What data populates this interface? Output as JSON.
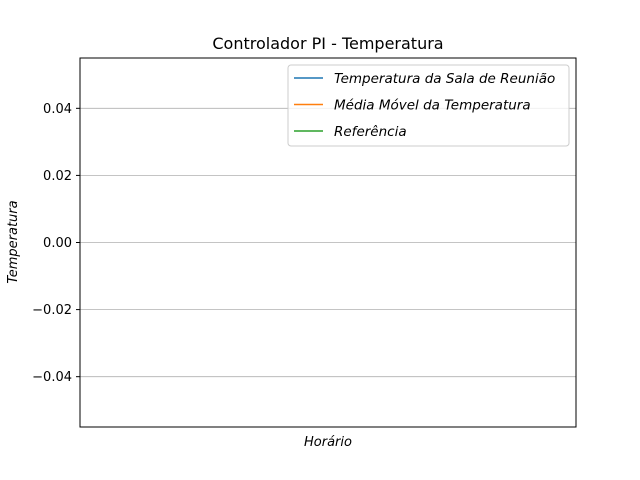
{
  "chart_data": {
    "type": "line",
    "title": "Controlador PI - Temperatura",
    "xlabel": "Horário",
    "ylabel": "Temperatura",
    "ylim": [
      -0.055,
      0.055
    ],
    "yticks": [
      0.04,
      0.02,
      0.0,
      -0.02,
      -0.04
    ],
    "ytick_labels": [
      "0.04",
      "0.02",
      "0.00",
      "−0.02",
      "−0.04"
    ],
    "xticks": [],
    "grid": "horizontal",
    "legend_position": "upper right",
    "series": [
      {
        "name": "Temperatura da Sala de Reunião",
        "color": "#1f77b4",
        "x": [],
        "values": []
      },
      {
        "name": "Média Móvel da Temperatura",
        "color": "#ff7f0e",
        "x": [],
        "values": []
      },
      {
        "name": "Referência",
        "color": "#2ca02c",
        "x": [],
        "values": []
      }
    ]
  }
}
